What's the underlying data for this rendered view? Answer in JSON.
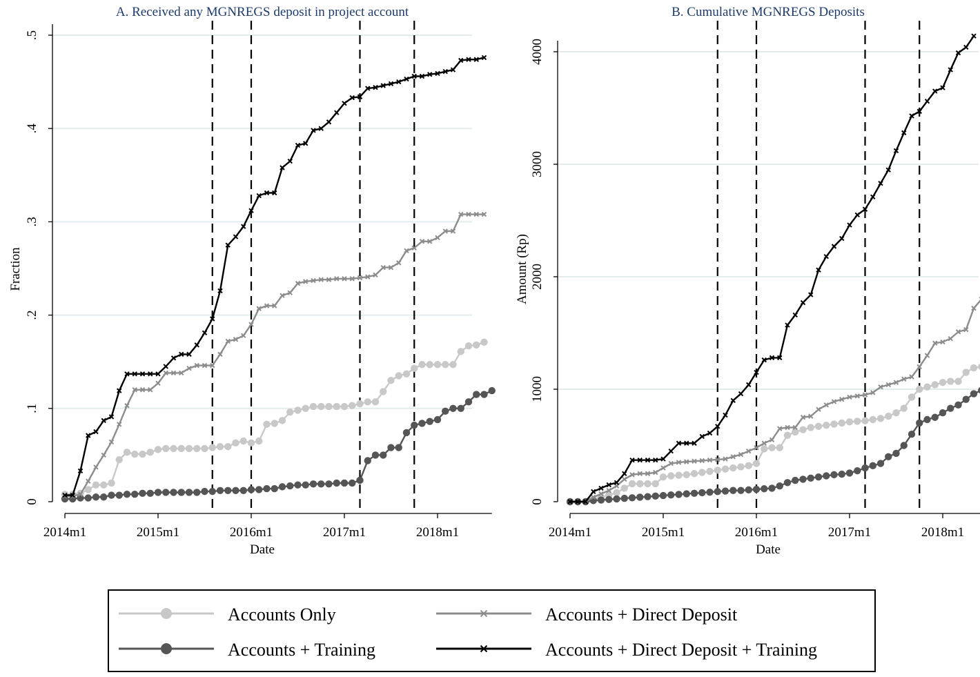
{
  "chart_data": [
    {
      "type": "line",
      "title": "A. Received any MGNREGS deposit in project account",
      "xlabel": "Date",
      "ylabel": "Fraction",
      "x_ticks": [
        "2014m1",
        "2015m1",
        "2016m1",
        "2017m1",
        "2018m1"
      ],
      "y_ticks": [
        "0",
        ".1",
        ".2",
        ".3",
        ".4",
        ".5"
      ],
      "ylim": [
        0,
        0.5
      ],
      "x_start": "2014m1",
      "vlines": [
        "2015m8",
        "2016m1",
        "2017m3",
        "2017m10"
      ],
      "grid": "horizontal",
      "series": [
        {
          "name": "Accounts Only",
          "values": [
            0.008,
            0.008,
            0.009,
            0.013,
            0.018,
            0.018,
            0.02,
            0.045,
            0.053,
            0.051,
            0.051,
            0.053,
            0.056,
            0.057,
            0.057,
            0.057,
            0.057,
            0.057,
            0.057,
            0.058,
            0.059,
            0.059,
            0.063,
            0.065,
            0.063,
            0.065,
            0.083,
            0.084,
            0.087,
            0.096,
            0.098,
            0.1,
            0.102,
            0.102,
            0.102,
            0.102,
            0.102,
            0.103,
            0.105,
            0.107,
            0.107,
            0.118,
            0.13,
            0.135,
            0.137,
            0.143,
            0.147,
            0.147,
            0.147,
            0.147,
            0.147,
            0.161,
            0.167,
            0.168,
            0.171
          ]
        },
        {
          "name": "Accounts + Training",
          "values": [
            0.003,
            0.003,
            0.004,
            0.004,
            0.005,
            0.005,
            0.007,
            0.007,
            0.008,
            0.008,
            0.009,
            0.009,
            0.01,
            0.01,
            0.01,
            0.01,
            0.01,
            0.01,
            0.011,
            0.011,
            0.012,
            0.012,
            0.012,
            0.012,
            0.013,
            0.013,
            0.014,
            0.014,
            0.016,
            0.017,
            0.018,
            0.018,
            0.019,
            0.019,
            0.019,
            0.02,
            0.02,
            0.02,
            0.023,
            0.044,
            0.05,
            0.05,
            0.058,
            0.058,
            0.074,
            0.082,
            0.084,
            0.086,
            0.088,
            0.097,
            0.1,
            0.1,
            0.107,
            0.115,
            0.115,
            0.119
          ]
        },
        {
          "name": "Accounts + Direct Deposit",
          "values": [
            0.006,
            0.006,
            0.008,
            0.022,
            0.037,
            0.05,
            0.064,
            0.083,
            0.103,
            0.12,
            0.12,
            0.12,
            0.127,
            0.138,
            0.138,
            0.138,
            0.143,
            0.146,
            0.146,
            0.146,
            0.158,
            0.172,
            0.174,
            0.178,
            0.19,
            0.207,
            0.21,
            0.21,
            0.221,
            0.224,
            0.234,
            0.236,
            0.237,
            0.238,
            0.238,
            0.239,
            0.239,
            0.239,
            0.24,
            0.241,
            0.243,
            0.251,
            0.251,
            0.256,
            0.269,
            0.272,
            0.279,
            0.279,
            0.283,
            0.29,
            0.29,
            0.308,
            0.308,
            0.308,
            0.308
          ]
        },
        {
          "name": "Accounts + Direct Deposit + Training",
          "values": [
            0.007,
            0.007,
            0.033,
            0.071,
            0.075,
            0.087,
            0.091,
            0.119,
            0.137,
            0.137,
            0.137,
            0.137,
            0.137,
            0.145,
            0.154,
            0.158,
            0.158,
            0.168,
            0.181,
            0.196,
            0.226,
            0.275,
            0.284,
            0.295,
            0.312,
            0.328,
            0.331,
            0.331,
            0.358,
            0.365,
            0.382,
            0.384,
            0.398,
            0.4,
            0.407,
            0.417,
            0.427,
            0.433,
            0.434,
            0.443,
            0.444,
            0.446,
            0.448,
            0.45,
            0.453,
            0.456,
            0.456,
            0.458,
            0.459,
            0.461,
            0.463,
            0.473,
            0.474,
            0.474,
            0.476
          ]
        }
      ]
    },
    {
      "type": "line",
      "title": "B. Cumulative MGNREGS Deposits",
      "xlabel": "Date",
      "ylabel": "Amount (Rp)",
      "x_ticks": [
        "2014m1",
        "2015m1",
        "2016m1",
        "2017m1",
        "2018m1"
      ],
      "y_ticks": [
        "0",
        "1000",
        "2000",
        "3000",
        "4000"
      ],
      "ylim": [
        0,
        4000
      ],
      "x_start": "2014m1",
      "vlines": [
        "2015m8",
        "2016m1",
        "2017m3",
        "2017m10"
      ],
      "grid": "horizontal",
      "series": [
        {
          "name": "Accounts Only",
          "values": [
            0,
            0,
            0,
            20,
            40,
            60,
            80,
            120,
            160,
            160,
            160,
            160,
            220,
            230,
            235,
            240,
            250,
            260,
            270,
            280,
            290,
            300,
            310,
            320,
            340,
            470,
            480,
            480,
            590,
            620,
            640,
            660,
            670,
            680,
            690,
            700,
            710,
            715,
            720,
            730,
            740,
            760,
            790,
            830,
            930,
            1000,
            1020,
            1040,
            1060,
            1070,
            1070,
            1150,
            1190,
            1200,
            1220
          ]
        },
        {
          "name": "Accounts + Training",
          "values": [
            0,
            0,
            0,
            10,
            15,
            20,
            25,
            30,
            35,
            40,
            45,
            50,
            55,
            60,
            65,
            70,
            75,
            80,
            85,
            90,
            95,
            100,
            100,
            105,
            110,
            115,
            120,
            140,
            170,
            190,
            200,
            210,
            220,
            230,
            240,
            245,
            255,
            275,
            300,
            320,
            340,
            400,
            430,
            500,
            600,
            700,
            730,
            750,
            790,
            830,
            860,
            910,
            960,
            990,
            1110
          ]
        },
        {
          "name": "Accounts + Direct Deposit",
          "values": [
            0,
            0,
            0,
            40,
            70,
            100,
            140,
            200,
            240,
            250,
            250,
            260,
            300,
            340,
            350,
            355,
            360,
            365,
            370,
            375,
            380,
            400,
            420,
            450,
            480,
            520,
            550,
            650,
            660,
            660,
            750,
            760,
            820,
            860,
            890,
            910,
            930,
            940,
            950,
            970,
            1020,
            1040,
            1060,
            1090,
            1110,
            1200,
            1300,
            1410,
            1420,
            1450,
            1510,
            1530,
            1720,
            1800,
            1800,
            1860
          ]
        },
        {
          "name": "Accounts + Direct Deposit + Training",
          "values": [
            0,
            0,
            0,
            90,
            120,
            150,
            170,
            250,
            370,
            370,
            370,
            370,
            380,
            450,
            520,
            520,
            520,
            580,
            610,
            670,
            770,
            900,
            960,
            1040,
            1150,
            1260,
            1280,
            1280,
            1570,
            1660,
            1770,
            1840,
            2060,
            2180,
            2270,
            2340,
            2460,
            2550,
            2600,
            2710,
            2830,
            2950,
            3120,
            3280,
            3430,
            3470,
            3560,
            3650,
            3680,
            3840,
            3990,
            4040,
            4140
          ]
        }
      ]
    }
  ],
  "legend": {
    "items": [
      {
        "label": "Accounts Only",
        "color": "#c8c8c8",
        "marker": "circle"
      },
      {
        "label": "Accounts + Direct Deposit",
        "color": "#8c8c8c",
        "marker": "x"
      },
      {
        "label": "Accounts + Training",
        "color": "#555555",
        "marker": "circle"
      },
      {
        "label": "Accounts + Direct Deposit + Training",
        "color": "#000000",
        "marker": "x"
      }
    ]
  },
  "colors": {
    "accounts_only": "#c8c8c8",
    "accounts_training": "#555555",
    "accounts_direct_deposit": "#8c8c8c",
    "accounts_dd_training": "#000000",
    "gridline": "#e3ecec",
    "title": "#1c3a6b"
  }
}
